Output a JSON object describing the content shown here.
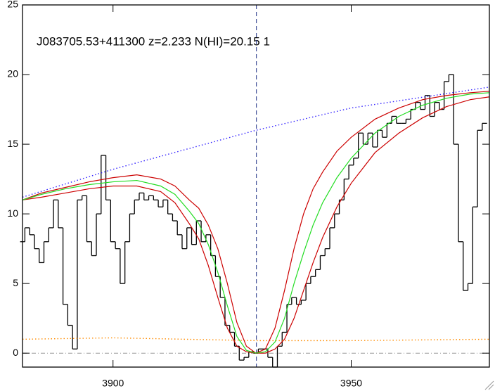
{
  "chart_data": {
    "type": "line",
    "title": "J083705.53+411300 z=2.233 N(HI)=20.15 1",
    "xlim": [
      3881,
      3979
    ],
    "ylim": [
      -1,
      25
    ],
    "xticks": [
      3900,
      3950
    ],
    "yticks": [
      0,
      5,
      10,
      15,
      20,
      25
    ],
    "zero_line": 0,
    "vline": 3930.1,
    "series": [
      {
        "color": "#000000",
        "style": "step",
        "x": [
          3881,
          3882,
          3883,
          3884,
          3885,
          3886,
          3887,
          3888,
          3889,
          3890,
          3891,
          3892,
          3893,
          3894,
          3895,
          3896,
          3897,
          3898,
          3899,
          3900,
          3901,
          3902,
          3903,
          3904,
          3905,
          3906,
          3907,
          3908,
          3909,
          3910,
          3911,
          3912,
          3913,
          3914,
          3915,
          3916,
          3917,
          3918,
          3919,
          3920,
          3921,
          3922,
          3923,
          3924,
          3925,
          3926,
          3927,
          3928,
          3929,
          3930,
          3931,
          3932,
          3933,
          3934,
          3935,
          3936,
          3937,
          3938,
          3939,
          3940,
          3941,
          3942,
          3943,
          3944,
          3945,
          3946,
          3947,
          3948,
          3949,
          3950,
          3951,
          3952,
          3953,
          3954,
          3955,
          3956,
          3957,
          3958,
          3959,
          3960,
          3961,
          3962,
          3963,
          3964,
          3965,
          3966,
          3967,
          3968,
          3969,
          3970,
          3971,
          3972,
          3973,
          3974,
          3975,
          3976,
          3977,
          3978
        ],
        "values": [
          8,
          9,
          8.5,
          7.5,
          6.5,
          8,
          9,
          11,
          9,
          3.5,
          2,
          0.3,
          11,
          11.3,
          8,
          7,
          10,
          14.2,
          11,
          8,
          7.5,
          5,
          8,
          10,
          11,
          11.5,
          11,
          11.3,
          11,
          10.5,
          11,
          10,
          9.5,
          8.5,
          7.5,
          9,
          7.8,
          9.5,
          8,
          8.5,
          7,
          5.5,
          4,
          2,
          1.5,
          0.5,
          -0.5,
          -0.3,
          0.1,
          0,
          0.3,
          0.3,
          -0.3,
          -1,
          0.5,
          1.5,
          3.5,
          4,
          3.5,
          3.8,
          5,
          5.5,
          6,
          7,
          7.5,
          9,
          10,
          11,
          12.5,
          13.5,
          14,
          15.8,
          15,
          15.8,
          14.8,
          16,
          15.5,
          16.5,
          17,
          16.5,
          16.5,
          16.8,
          17.5,
          18,
          17.5,
          18.5,
          17,
          18,
          17.5,
          19.5,
          20,
          15,
          8,
          4.5,
          5,
          10.5,
          16,
          16.5
        ]
      },
      {
        "color": "#ff8c00",
        "style": "dotted",
        "x": [
          3881,
          3900,
          3930,
          3950,
          3979
        ],
        "values": [
          1.0,
          1.1,
          0.9,
          0.9,
          1.0
        ]
      },
      {
        "color": "#3322ff",
        "style": "dotted",
        "x": [
          3881,
          3900,
          3930,
          3950,
          3979
        ],
        "values": [
          11.2,
          13.2,
          16.0,
          17.6,
          19.1
        ]
      },
      {
        "color": "#cc0000",
        "style": "solid",
        "x": [
          3881,
          3885,
          3890,
          3895,
          3900,
          3905,
          3910,
          3913,
          3916,
          3918,
          3920,
          3922,
          3924,
          3926,
          3928,
          3930,
          3932,
          3934,
          3936,
          3938,
          3940,
          3942,
          3944,
          3947,
          3950,
          3955,
          3960,
          3965,
          3970,
          3975,
          3979
        ],
        "values": [
          11.0,
          11.5,
          11.9,
          12.3,
          12.6,
          12.8,
          12.5,
          12.0,
          11.0,
          10.4,
          9.2,
          7.5,
          5.0,
          2.2,
          0.5,
          0,
          0.3,
          1.8,
          4.5,
          7.5,
          10.0,
          11.8,
          13.0,
          14.5,
          15.5,
          16.8,
          17.6,
          18.2,
          18.5,
          18.7,
          18.8
        ]
      },
      {
        "color": "#cc0000",
        "style": "solid",
        "x": [
          3881,
          3885,
          3890,
          3895,
          3900,
          3905,
          3910,
          3913,
          3916,
          3918,
          3920,
          3922,
          3924,
          3926,
          3928,
          3930,
          3932,
          3934,
          3936,
          3938,
          3940,
          3942,
          3944,
          3947,
          3950,
          3955,
          3960,
          3965,
          3970,
          3975,
          3979
        ],
        "values": [
          11.0,
          11.2,
          11.5,
          11.8,
          12.0,
          12.0,
          11.6,
          10.8,
          9.3,
          8.2,
          6.3,
          4.0,
          1.8,
          0.5,
          0.1,
          0,
          0,
          0.3,
          1.0,
          2.5,
          4.5,
          6.5,
          8.3,
          10.5,
          12.2,
          14.4,
          15.8,
          16.9,
          17.7,
          18.2,
          18.4
        ]
      },
      {
        "color": "#22dd22",
        "style": "solid",
        "x": [
          3881,
          3885,
          3890,
          3895,
          3900,
          3905,
          3910,
          3913,
          3916,
          3918,
          3920,
          3922,
          3924,
          3926,
          3928,
          3930,
          3932,
          3934,
          3936,
          3938,
          3940,
          3942,
          3944,
          3947,
          3950,
          3955,
          3960,
          3965,
          3970,
          3975,
          3979
        ],
        "values": [
          11.0,
          11.4,
          11.8,
          12.1,
          12.3,
          12.4,
          12.0,
          11.4,
          10.2,
          9.3,
          7.8,
          5.8,
          3.4,
          1.2,
          0.2,
          0,
          0.1,
          0.8,
          2.5,
          5.0,
          7.2,
          9.2,
          10.8,
          12.6,
          14.0,
          15.8,
          17.0,
          17.8,
          18.3,
          18.6,
          18.7
        ]
      }
    ]
  }
}
